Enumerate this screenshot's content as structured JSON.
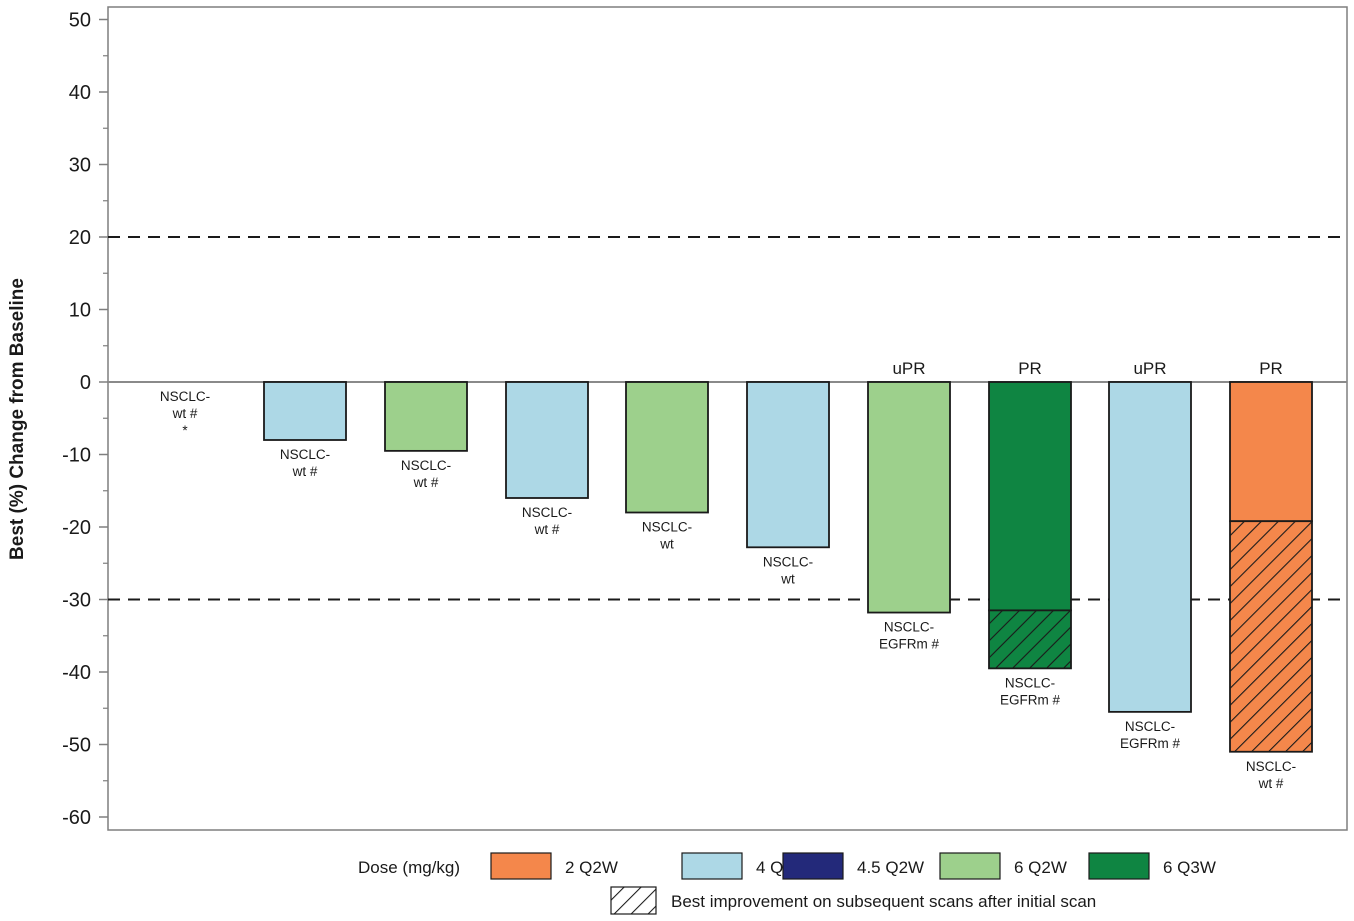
{
  "chart_data": {
    "type": "bar",
    "ylabel": "Best (%) Change from Baseline",
    "ylim": [
      -63,
      52
    ],
    "yticks": [
      50,
      40,
      30,
      20,
      10,
      0,
      -10,
      -20,
      -30,
      -40,
      -50,
      -60
    ],
    "reference_lines": [
      20,
      -30
    ],
    "grid": false,
    "bars": [
      {
        "value": 0,
        "dose": "",
        "label": [
          "NSCLC-",
          "wt #",
          "*"
        ],
        "response": ""
      },
      {
        "value": -8,
        "dose": "4 Q2W",
        "label": [
          "NSCLC-",
          "wt #"
        ],
        "response": ""
      },
      {
        "value": -9.5,
        "dose": "6 Q2W",
        "label": [
          "NSCLC-",
          "wt #"
        ],
        "response": ""
      },
      {
        "value": -16,
        "dose": "4 Q2W",
        "label": [
          "NSCLC-",
          "wt #"
        ],
        "response": ""
      },
      {
        "value": -18,
        "dose": "6 Q2W",
        "label": [
          "NSCLC-",
          "wt"
        ],
        "response": ""
      },
      {
        "value": -22.8,
        "dose": "4 Q2W",
        "label": [
          "NSCLC-",
          "wt"
        ],
        "response": ""
      },
      {
        "value": -31.8,
        "dose": "6 Q2W",
        "label": [
          "NSCLC-",
          "EGFRm #"
        ],
        "response": "uPR"
      },
      {
        "value": -31.5,
        "best_value": -39.5,
        "dose": "6 Q3W",
        "label": [
          "NSCLC-",
          "EGFRm #"
        ],
        "response": "PR"
      },
      {
        "value": -45.5,
        "dose": "4 Q2W",
        "label": [
          "NSCLC-",
          "EGFRm #"
        ],
        "response": "uPR"
      },
      {
        "value": -19.2,
        "best_value": -51,
        "dose": "2 Q2W",
        "label": [
          "NSCLC-",
          "wt #"
        ],
        "response": "PR"
      }
    ],
    "legend": {
      "title": "Dose (mg/kg)",
      "items": [
        {
          "name": "2 Q2W",
          "color": "#f4874b"
        },
        {
          "name": "4 Q2W",
          "color": "#add8e6"
        },
        {
          "name": "4.5 Q2W",
          "color": "#23297a"
        },
        {
          "name": "6 Q2W",
          "color": "#9dd08c"
        },
        {
          "name": "6 Q3W",
          "color": "#0f8542"
        }
      ],
      "hatch_label": "Best improvement on subsequent scans after initial scan",
      "placement": "bottom"
    }
  }
}
